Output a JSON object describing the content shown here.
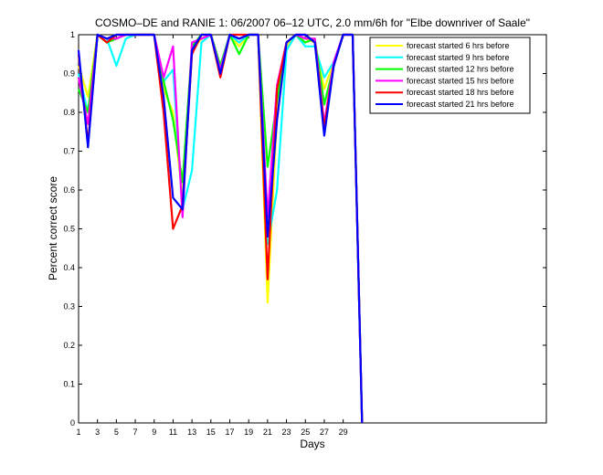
{
  "chart_data": {
    "type": "line",
    "title": "COSMO–DE and RANIE 1: 06/2007 06–12 UTC, 2.0 mm/6h for \"Elbe downriver of Saale\"",
    "xlabel": "Days",
    "ylabel": "Percent correct score",
    "xlim": [
      1,
      50.5
    ],
    "ylim": [
      0,
      1
    ],
    "xticks": [
      1,
      3,
      5,
      7,
      9,
      11,
      13,
      15,
      17,
      19,
      21,
      23,
      25,
      27,
      29
    ],
    "yticks": [
      0,
      0.1,
      0.2,
      0.3,
      0.4,
      0.5,
      0.6,
      0.7,
      0.8,
      0.9,
      1
    ],
    "ytick_labels": [
      "0",
      "0.1",
      "0.2",
      "0.3",
      "0.4",
      "0.5",
      "0.6",
      "0.7",
      "0.8",
      "0.9",
      "1"
    ],
    "x": [
      1,
      2,
      3,
      4,
      5,
      6,
      7,
      8,
      9,
      10,
      11,
      12,
      13,
      14,
      15,
      16,
      17,
      18,
      19,
      20,
      21,
      22,
      23,
      24,
      25,
      26,
      27,
      28,
      29,
      30,
      31
    ],
    "legend_position": "top-right",
    "series": [
      {
        "name": "forecast started 6 hrs before",
        "color": "#ffff00",
        "values": [
          0.92,
          0.84,
          1.0,
          0.98,
          1.0,
          1.0,
          1.0,
          1.0,
          1.0,
          0.86,
          0.8,
          0.58,
          0.96,
          0.99,
          1.0,
          0.92,
          1.0,
          0.97,
          1.0,
          1.0,
          0.31,
          0.79,
          0.97,
          1.0,
          0.99,
          0.98,
          0.86,
          0.93,
          1.0,
          1.0,
          0.0
        ]
      },
      {
        "name": "forecast started 9 hrs before",
        "color": "#00ffff",
        "values": [
          0.9,
          0.8,
          1.0,
          0.99,
          0.92,
          0.99,
          1.0,
          1.0,
          1.0,
          0.88,
          0.91,
          0.55,
          0.65,
          0.98,
          1.0,
          0.92,
          1.0,
          0.98,
          1.0,
          1.0,
          0.46,
          0.6,
          0.96,
          1.0,
          0.97,
          0.97,
          0.89,
          0.93,
          1.0,
          1.0,
          0.0
        ]
      },
      {
        "name": "forecast started 12 hrs before",
        "color": "#00ff00",
        "values": [
          0.86,
          0.8,
          1.0,
          0.98,
          0.99,
          1.0,
          1.0,
          1.0,
          1.0,
          0.88,
          0.78,
          0.62,
          0.97,
          1.0,
          1.0,
          0.92,
          1.0,
          0.95,
          1.0,
          1.0,
          0.66,
          0.83,
          0.98,
          1.0,
          0.98,
          0.99,
          0.82,
          0.92,
          1.0,
          1.0,
          0.0
        ]
      },
      {
        "name": "forecast started 15 hrs before",
        "color": "#ff00ff",
        "values": [
          0.89,
          0.77,
          1.0,
          0.99,
          0.99,
          1.0,
          1.0,
          1.0,
          1.0,
          0.89,
          0.97,
          0.53,
          0.98,
          0.99,
          1.0,
          0.91,
          1.0,
          0.99,
          1.0,
          1.0,
          0.53,
          0.87,
          0.98,
          1.0,
          0.99,
          0.99,
          0.77,
          0.93,
          1.0,
          1.0,
          0.0
        ]
      },
      {
        "name": "forecast started 18 hrs before",
        "color": "#ff0000",
        "values": [
          0.95,
          0.72,
          1.0,
          0.98,
          1.0,
          1.0,
          1.0,
          1.0,
          1.0,
          0.8,
          0.5,
          0.56,
          0.95,
          1.0,
          1.0,
          0.89,
          1.0,
          1.0,
          1.0,
          1.0,
          0.37,
          0.86,
          0.98,
          1.0,
          1.0,
          0.98,
          0.76,
          0.92,
          1.0,
          1.0,
          0.0
        ]
      },
      {
        "name": "forecast started 21 hrs before",
        "color": "#0000ff",
        "values": [
          0.96,
          0.71,
          1.0,
          0.99,
          1.0,
          1.0,
          1.0,
          1.0,
          1.0,
          0.84,
          0.58,
          0.55,
          0.96,
          1.0,
          1.0,
          0.9,
          1.0,
          0.99,
          1.0,
          1.0,
          0.48,
          0.78,
          0.98,
          1.0,
          1.0,
          0.98,
          0.74,
          0.92,
          1.0,
          1.0,
          0.0
        ]
      }
    ]
  }
}
